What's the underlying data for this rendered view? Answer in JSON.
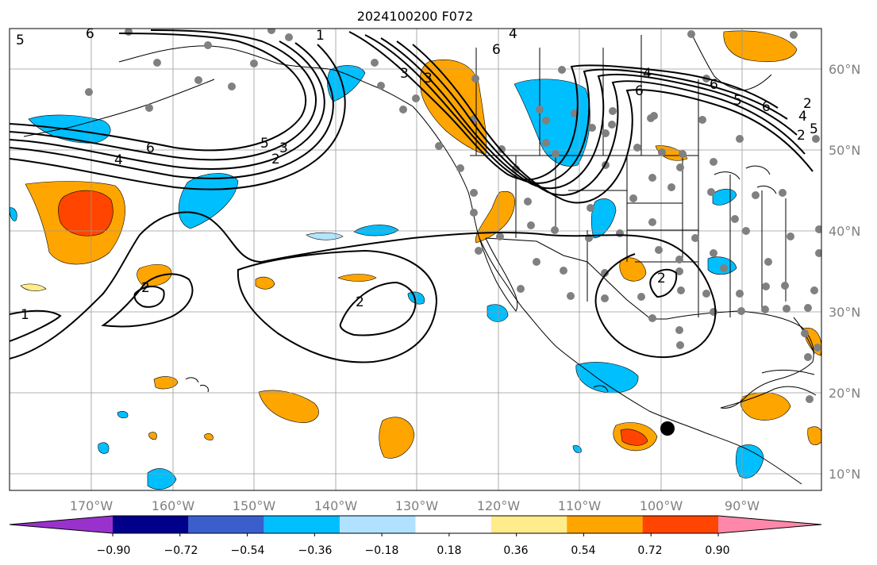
{
  "title": "2024100200 F072",
  "map": {
    "lon_labels": [
      "170°W",
      "160°W",
      "150°W",
      "140°W",
      "130°W",
      "120°W",
      "110°W",
      "100°W",
      "90°W"
    ],
    "lat_labels": [
      "60°N",
      "50°N",
      "40°N",
      "30°N",
      "20°N",
      "10°N"
    ],
    "contour_labels": [
      "5",
      "6",
      "1",
      "6",
      "6",
      "4",
      "3",
      "3",
      "4",
      "6",
      "5",
      "6",
      "3",
      "6",
      "4",
      "5",
      "2",
      "5",
      "4",
      "2",
      "2",
      "1",
      "2",
      "2",
      "2"
    ],
    "colors": {
      "light_blue": "#b3e5fc",
      "blue": "#00bfff",
      "orange": "#ffa500",
      "red_orange": "#ff4500",
      "dot": "#808080"
    }
  },
  "colorbar": {
    "tick_labels": [
      "−0.90",
      "−0.72",
      "−0.54",
      "−0.36",
      "−0.18",
      "0.18",
      "0.36",
      "0.54",
      "0.72",
      "0.90"
    ],
    "colors": [
      "#9932cc",
      "#00008b",
      "#3a5fcd",
      "#00bfff",
      "#b0e2ff",
      "#ffffff",
      "#ffec8b",
      "#ffa500",
      "#ff4500",
      "#b22222",
      "#ff88aa"
    ]
  }
}
